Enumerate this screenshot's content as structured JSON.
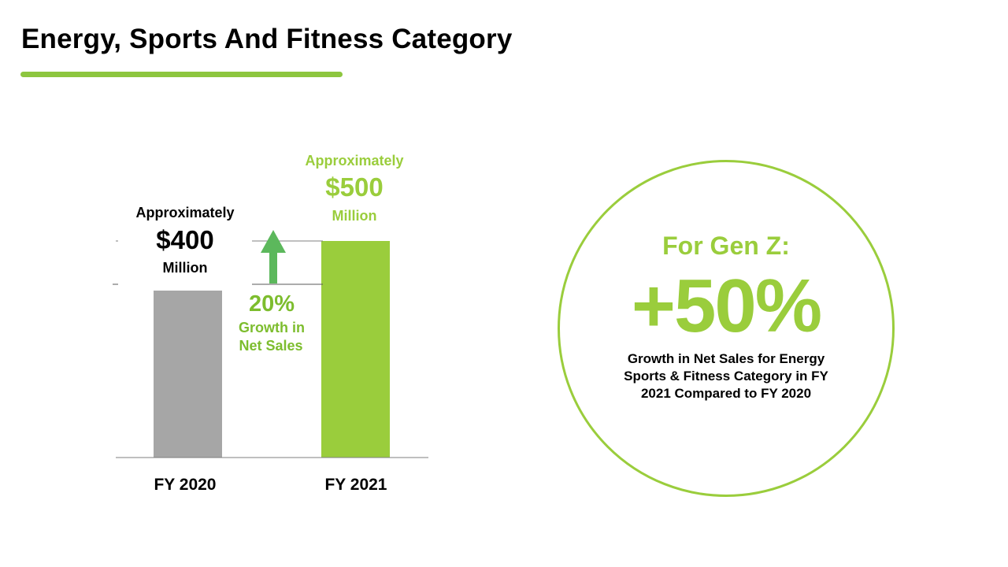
{
  "title": "Energy, Sports And Fitness Category",
  "colors": {
    "accent": "#8dc63f",
    "bar_fy2020": "#a6a6a6",
    "bar_fy2021": "#9acd3c",
    "growth_text": "#7dbd2e",
    "arrow": "#5cb85c",
    "axis": "#7f7f7f"
  },
  "chart_data": {
    "type": "bar",
    "categories": [
      "FY 2020",
      "FY 2021"
    ],
    "values": [
      400,
      500
    ],
    "units": "Million",
    "data_labels": [
      {
        "prefix": "Approximately",
        "value": "$400",
        "suffix": "Million"
      },
      {
        "prefix": "Approximately",
        "value": "$500",
        "suffix": "Million"
      }
    ],
    "annotation": {
      "value": "20%",
      "line1": "Growth in",
      "line2": "Net Sales",
      "icon": "arrow-up-icon"
    }
  },
  "callout": {
    "heading": "For Gen Z:",
    "big_value": "+50%",
    "description": "Growth in Net Sales for  Energy Sports & Fitness Category  in FY 2021 Compared to FY 2020"
  }
}
